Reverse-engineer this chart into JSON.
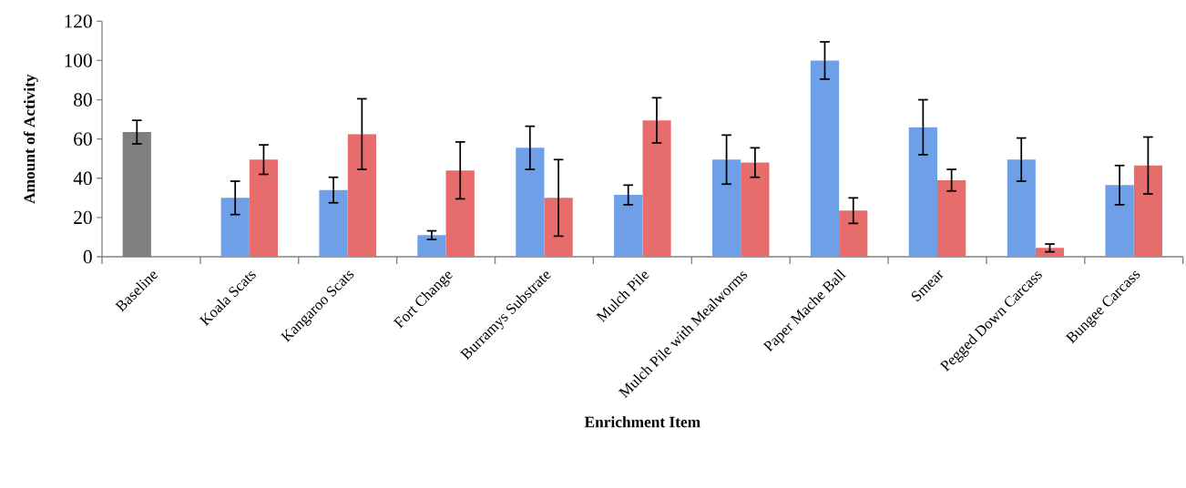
{
  "chart_data": {
    "type": "bar",
    "xlabel": "Enrichment Item",
    "ylabel": "Amount of Activity",
    "categories": [
      "Baseline",
      "Koala Scats",
      "Kangaroo Scats",
      "Fort Change",
      "Burramys Substrate",
      "Mulch Pile",
      "Mulch Pile with Mealworms",
      "Paper Mache Ball",
      "Smear",
      "Pegged Down Carcass",
      "Bungee Carcass"
    ],
    "series": [
      {
        "colors": [
          "#7f7f7f",
          "#6e9fe7",
          "#6e9fe7",
          "#6e9fe7",
          "#6e9fe7",
          "#6e9fe7",
          "#6e9fe7",
          "#6e9fe7",
          "#6e9fe7",
          "#6e9fe7",
          "#6e9fe7"
        ],
        "values": [
          63.5,
          30,
          34,
          11,
          55.5,
          31.5,
          49.5,
          100,
          66,
          49.5,
          36.5
        ],
        "errors": [
          6,
          8.5,
          6.5,
          2.2,
          11,
          5,
          12.5,
          9.5,
          14,
          11,
          10
        ]
      },
      {
        "color": "#e76c6c",
        "values": [
          null,
          49.5,
          62.5,
          44,
          30,
          69.5,
          48,
          23.5,
          39,
          4.5,
          46.5
        ],
        "errors": [
          null,
          7.5,
          18,
          14.5,
          19.5,
          11.5,
          7.5,
          6.5,
          5.5,
          2,
          14.5
        ]
      }
    ],
    "ylim": [
      0,
      120
    ],
    "yticks": [
      0,
      20,
      40,
      60,
      80,
      100,
      120
    ],
    "grid": false
  }
}
